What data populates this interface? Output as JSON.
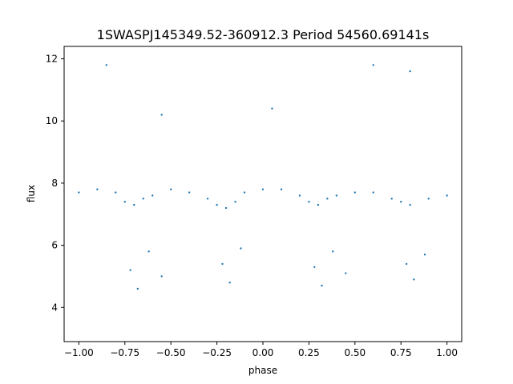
{
  "chart_data": {
    "type": "scatter",
    "title": "1SWASPJ145349.52-360912.3 Period 54560.69141s",
    "xlabel": "phase",
    "ylabel": "flux",
    "xlim": [
      -1.08,
      1.08
    ],
    "ylim": [
      2.9,
      12.4
    ],
    "xticks": [
      -1.0,
      -0.75,
      -0.5,
      -0.25,
      0.0,
      0.25,
      0.5,
      0.75,
      1.0
    ],
    "xtick_labels": [
      "−1.00",
      "−0.75",
      "−0.50",
      "−0.25",
      "0.00",
      "0.25",
      "0.50",
      "0.75",
      "1.00"
    ],
    "yticks": [
      4,
      6,
      8,
      10,
      12
    ],
    "ytick_labels": [
      "4",
      "6",
      "8",
      "10",
      "12"
    ],
    "grid": false,
    "marker_color": "#1f77b4",
    "series": [
      {
        "points": [
          [
            -1.0,
            7.7
          ],
          [
            -0.9,
            7.8
          ],
          [
            -0.8,
            7.7
          ],
          [
            -0.75,
            7.4
          ],
          [
            -0.7,
            7.3
          ],
          [
            -0.65,
            7.5
          ],
          [
            -0.6,
            7.6
          ],
          [
            -0.5,
            7.8
          ],
          [
            -0.4,
            7.7
          ],
          [
            -0.3,
            7.5
          ],
          [
            -0.25,
            7.3
          ],
          [
            -0.2,
            7.2
          ],
          [
            -0.15,
            7.4
          ],
          [
            -0.1,
            7.7
          ],
          [
            0.0,
            7.8
          ],
          [
            0.1,
            7.8
          ],
          [
            0.2,
            7.6
          ],
          [
            0.25,
            7.4
          ],
          [
            0.3,
            7.3
          ],
          [
            0.35,
            7.5
          ],
          [
            0.4,
            7.6
          ],
          [
            0.5,
            7.7
          ],
          [
            0.6,
            7.7
          ],
          [
            0.7,
            7.5
          ],
          [
            0.75,
            7.4
          ],
          [
            0.8,
            7.3
          ],
          [
            0.9,
            7.5
          ],
          [
            1.0,
            7.6
          ],
          [
            -0.72,
            5.2
          ],
          [
            -0.68,
            4.6
          ],
          [
            -0.62,
            5.8
          ],
          [
            -0.55,
            5.0
          ],
          [
            -0.22,
            5.4
          ],
          [
            -0.18,
            4.8
          ],
          [
            -0.12,
            5.9
          ],
          [
            0.28,
            5.3
          ],
          [
            0.32,
            4.7
          ],
          [
            0.38,
            5.8
          ],
          [
            0.45,
            5.1
          ],
          [
            0.78,
            5.4
          ],
          [
            0.82,
            4.9
          ],
          [
            0.88,
            5.7
          ],
          [
            -0.85,
            11.8
          ],
          [
            -0.55,
            10.2
          ],
          [
            0.05,
            10.4
          ],
          [
            0.6,
            11.8
          ],
          [
            0.8,
            11.6
          ]
        ]
      }
    ]
  }
}
